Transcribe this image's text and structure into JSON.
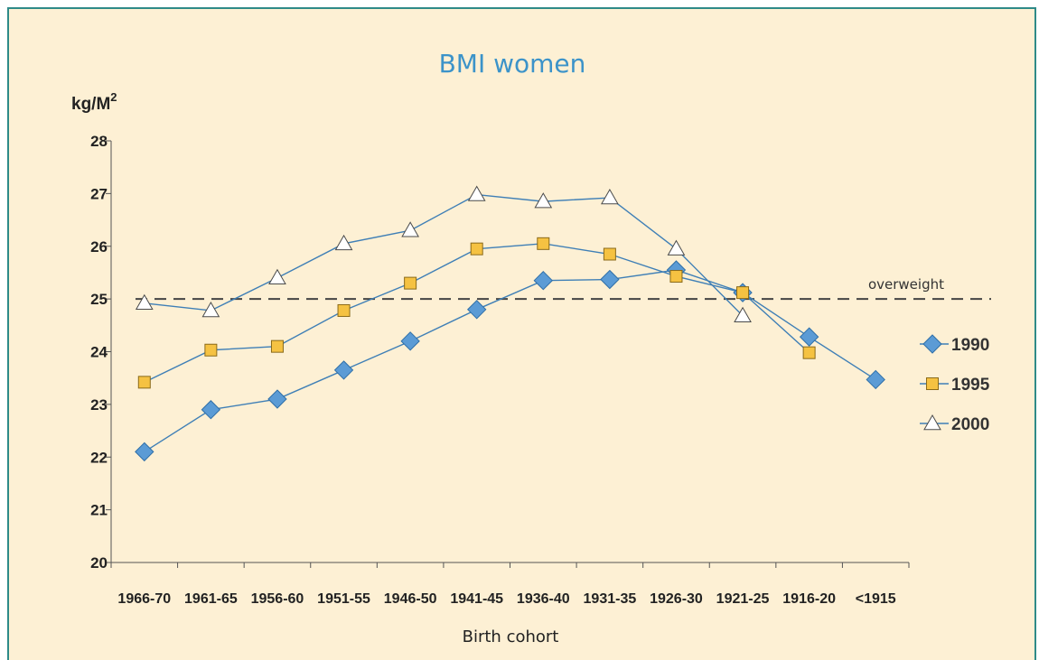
{
  "chart_data": {
    "type": "line",
    "title": "BMI women",
    "ylabel": "kg/M",
    "ylabel_superscript": "2",
    "xlabel": "Birth cohort",
    "ylim": [
      20,
      28
    ],
    "yticks": [
      20,
      21,
      22,
      23,
      24,
      25,
      26,
      27,
      28
    ],
    "categories": [
      "1966-70",
      "1961-65",
      "1956-60",
      "1951-55",
      "1946-50",
      "1941-45",
      "1936-40",
      "1931-35",
      "1926-30",
      "1921-25",
      "1916-20",
      "<1915"
    ],
    "reference_line": {
      "value": 25,
      "label": "overweight",
      "style": "dashed"
    },
    "legend_position": "right",
    "series": [
      {
        "name": "1990",
        "marker": "diamond",
        "fill": "#5b9bd5",
        "line": "#3f7fb6",
        "values": [
          22.1,
          22.9,
          23.1,
          23.65,
          24.2,
          24.8,
          25.35,
          25.37,
          25.55,
          25.12,
          24.28,
          23.47
        ]
      },
      {
        "name": "1995",
        "marker": "square",
        "fill": "#f5c242",
        "line": "#3f7fb6",
        "values": [
          23.42,
          24.03,
          24.1,
          24.78,
          25.3,
          25.95,
          26.05,
          25.85,
          25.43,
          25.12,
          23.98,
          null
        ]
      },
      {
        "name": "2000",
        "marker": "triangle",
        "fill": "#ffffff",
        "line": "#3f7fb6",
        "values": [
          24.92,
          24.78,
          25.4,
          26.05,
          26.3,
          26.98,
          26.85,
          26.92,
          25.95,
          24.68,
          null,
          null
        ]
      }
    ]
  }
}
